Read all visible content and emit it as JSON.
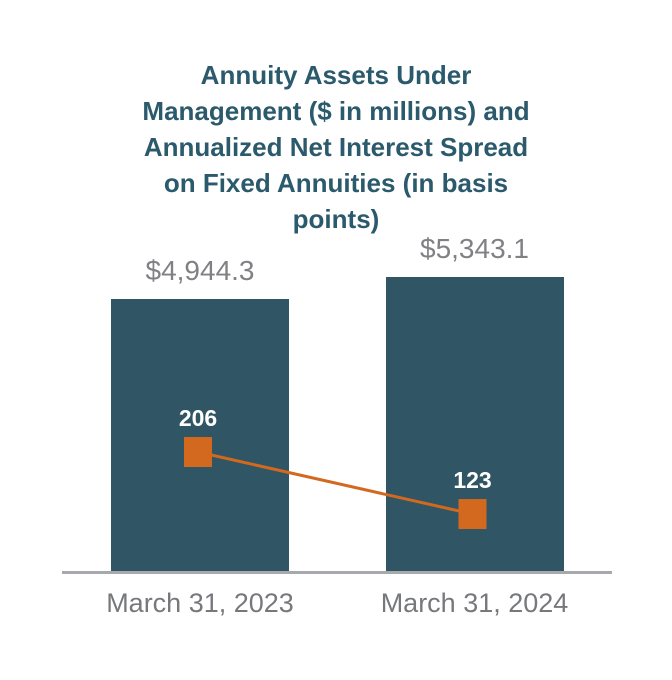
{
  "page": {
    "background": "#FFFFFF"
  },
  "chart_data": {
    "type": "bar",
    "title": "Annuity Assets Under Management ($ in millions) and Annualized Net Interest Spread on Fixed Annuities (in basis points)",
    "title_lines": [
      "Annuity Assets Under",
      "Management ($ in millions) and",
      "Annualized Net Interest Spread",
      "on Fixed Annuities (in basis",
      "points)"
    ],
    "categories": [
      "March 31, 2023",
      "March 31, 2024"
    ],
    "series": [
      {
        "name": "Annuity Assets Under Management",
        "type": "bar",
        "unit": "$ in millions",
        "values": [
          4944.3,
          5343.1
        ],
        "data_labels": [
          "$4,944.3",
          "$5,343.1"
        ],
        "color": "#305565"
      },
      {
        "name": "Annualized Net Interest Spread on Fixed Annuities",
        "type": "line",
        "unit": "basis points",
        "values": [
          206,
          123
        ],
        "data_labels": [
          "206",
          "123"
        ],
        "color": "#D2691E",
        "marker": "square"
      }
    ],
    "legend": "none",
    "grid": false,
    "ylim_bar": [
      0,
      5343.1
    ],
    "styles": {
      "title_color": "#2B5A6C",
      "value_label_color": "#808184",
      "category_label_color": "#77787B",
      "baseline_color": "#A7A9AC",
      "marker_label_color": "#FFFFFF"
    }
  }
}
